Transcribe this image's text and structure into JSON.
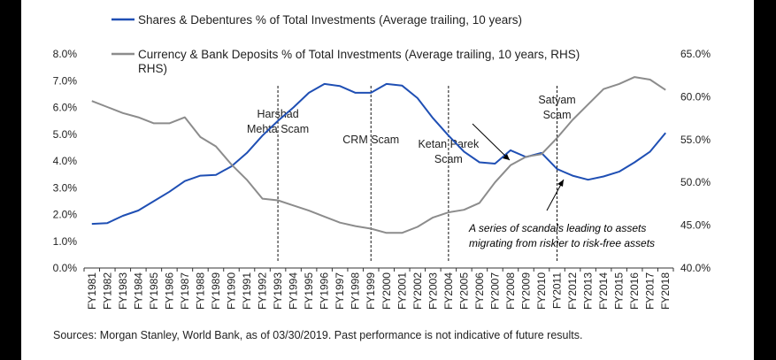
{
  "chart_data": {
    "type": "line",
    "categories": [
      "FY1981",
      "FY1982",
      "FY1983",
      "FY1984",
      "FY1985",
      "FY1986",
      "FY1987",
      "FY1988",
      "FY1989",
      "FY1990",
      "FY1991",
      "FY1992",
      "FY1993",
      "FY1994",
      "FY1995",
      "FY1996",
      "FY1997",
      "FY1998",
      "FY1999",
      "FY2000",
      "FY2001",
      "FY2002",
      "FY2003",
      "FY2004",
      "FY2005",
      "FY2006",
      "FY2007",
      "FY2008",
      "FY2009",
      "FY2010",
      "FY2011",
      "FY2012",
      "FY2013",
      "FY2014",
      "FY2015",
      "FY2016",
      "FY2017",
      "FY2018"
    ],
    "series": [
      {
        "name": "Shares & Debentures % of Total Investments (Average trailing, 10 years)",
        "axis": "left",
        "color": "#1f4fb4",
        "values": [
          1.65,
          1.68,
          1.95,
          2.15,
          2.5,
          2.85,
          3.25,
          3.45,
          3.48,
          3.8,
          4.3,
          4.95,
          5.5,
          6.0,
          6.55,
          6.88,
          6.8,
          6.55,
          6.55,
          6.88,
          6.82,
          6.35,
          5.6,
          4.95,
          4.35,
          3.95,
          3.9,
          4.4,
          4.15,
          4.3,
          3.7,
          3.45,
          3.3,
          3.42,
          3.6,
          3.95,
          4.35,
          5.05
        ]
      },
      {
        "name": "Currency & Bank Deposits % of Total Investments (Average trailing, 10 years, RHS)",
        "axis": "right",
        "color": "#8c8c8c",
        "values": [
          59.5,
          58.8,
          58.1,
          57.6,
          56.9,
          56.9,
          57.6,
          55.3,
          54.2,
          52.1,
          50.3,
          48.1,
          47.9,
          47.3,
          46.7,
          46.0,
          45.3,
          44.9,
          44.6,
          44.1,
          44.1,
          44.8,
          45.9,
          46.5,
          46.8,
          47.6,
          50.0,
          52.0,
          53.0,
          53.3,
          55.2,
          57.3,
          59.1,
          60.9,
          61.5,
          62.3,
          62.0,
          60.8
        ]
      }
    ],
    "y_left": {
      "ylim": [
        0,
        8
      ],
      "ticks": [
        "0.0%",
        "1.0%",
        "2.0%",
        "3.0%",
        "4.0%",
        "5.0%",
        "6.0%",
        "7.0%",
        "8.0%"
      ]
    },
    "y_right": {
      "ylim": [
        40,
        65
      ],
      "ticks": [
        "40.0%",
        "45.0%",
        "50.0%",
        "55.0%",
        "60.0%",
        "65.0%"
      ]
    },
    "events": [
      {
        "name": "Harshad Mehta Scam",
        "lines": [
          "Harshad",
          "Mehta Scam"
        ],
        "year": "FY1993"
      },
      {
        "name": "CRM Scam",
        "lines": [
          "CRM Scam"
        ],
        "year": "FY1999"
      },
      {
        "name": "Ketan Parek Scam",
        "lines": [
          "Ketan Parek",
          "Scam"
        ],
        "year": "FY2004"
      },
      {
        "name": "Satyam Scam",
        "lines": [
          "Satyam",
          "Scam"
        ],
        "year": "FY2011"
      }
    ],
    "annotation": [
      "A series of scandals leading to assets",
      "migrating from riskier to risk-free assets"
    ],
    "legend_position": "top",
    "grid": false
  },
  "legend": {
    "shares_label": "Shares & Debentures % of Total Investments (Average trailing, 10 years)",
    "deposits_label_line1": "Currency & Bank Deposits % of Total Investments (Average trailing, 10 years, RHS)",
    "deposits_label_line2": "RHS)"
  },
  "source_text": "Sources: Morgan Stanley, World Bank, as of 03/30/2019. Past performance is not indicative of future results."
}
